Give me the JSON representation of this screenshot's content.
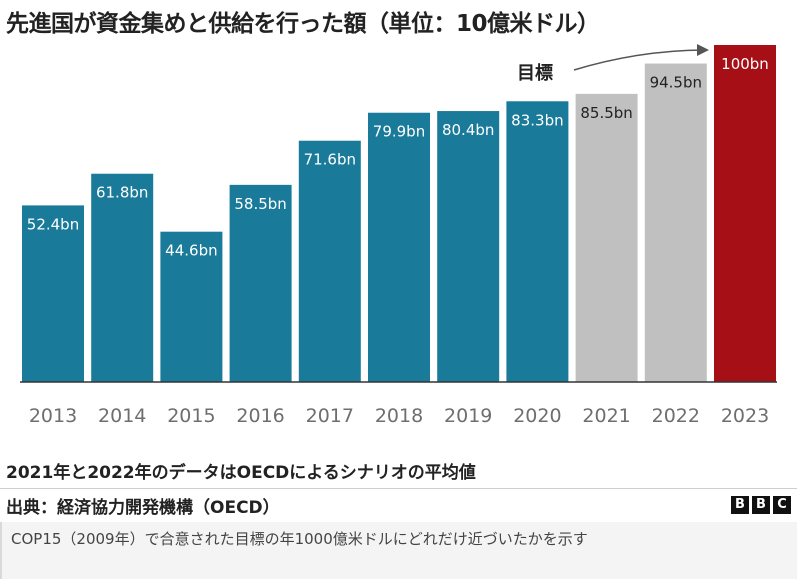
{
  "colors": {
    "actual": "#1a7a99",
    "scenario": "#c0c0c0",
    "target": "#a50f15",
    "axis": "#333333",
    "tick_text": "#6e6e6e"
  },
  "chart_data": {
    "type": "bar",
    "title": "先進国が資金集めと供給を行った額（単位：10億米ドル）",
    "categories": [
      "2013",
      "2014",
      "2015",
      "2016",
      "2017",
      "2018",
      "2019",
      "2020",
      "2021",
      "2022",
      "2023"
    ],
    "values": [
      52.4,
      61.8,
      44.6,
      58.5,
      71.6,
      79.9,
      80.4,
      83.3,
      85.5,
      94.5,
      100
    ],
    "value_labels": [
      "52.4bn",
      "61.8bn",
      "44.6bn",
      "58.5bn",
      "71.6bn",
      "79.9bn",
      "80.4bn",
      "83.3bn",
      "85.5bn",
      "94.5bn",
      "100bn"
    ],
    "bar_kinds": [
      "actual",
      "actual",
      "actual",
      "actual",
      "actual",
      "actual",
      "actual",
      "actual",
      "scenario",
      "scenario",
      "target"
    ],
    "ylim": [
      0,
      100
    ],
    "grid": false,
    "annotation": "目標"
  },
  "note": "2021年と2022年のデータはOECDによるシナリオの平均値",
  "source": "出典：経済協力開発機構（OECD）",
  "logo": [
    "B",
    "B",
    "C"
  ],
  "caption": "COP15（2009年）で合意された目標の年1000億米ドルにどれだけ近づいたかを示す"
}
